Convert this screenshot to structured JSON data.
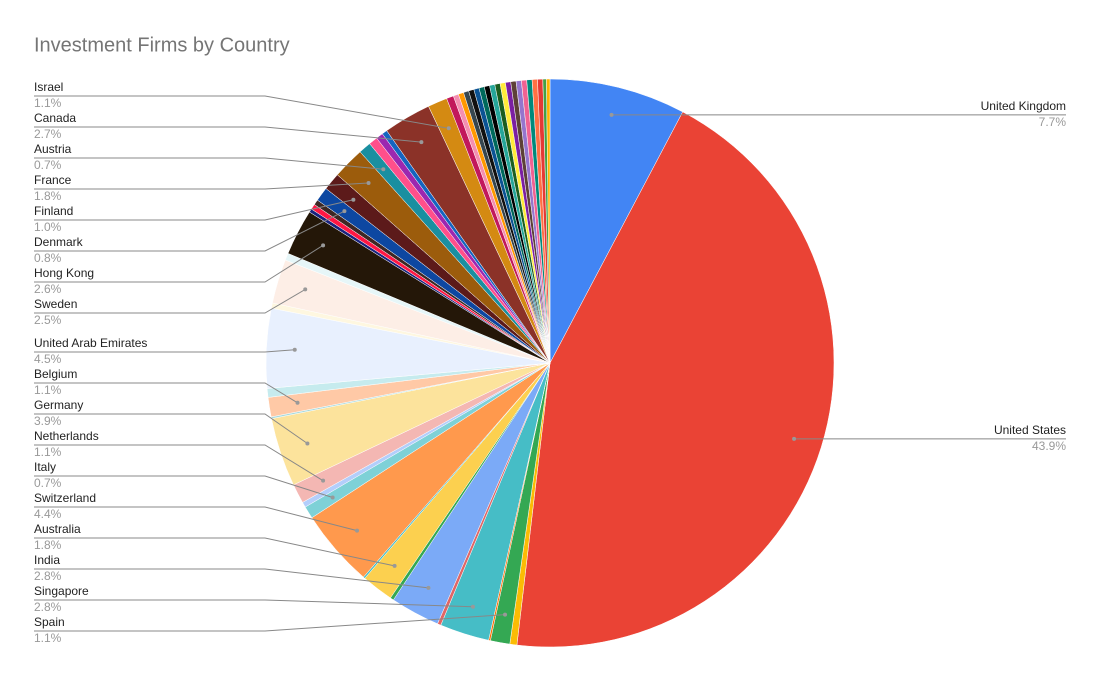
{
  "chart_data": {
    "type": "pie",
    "title": "Investment Firms by Country",
    "categories": [
      "United Kingdom",
      "United States",
      null,
      "Spain",
      null,
      "Singapore",
      null,
      "India",
      null,
      "Australia",
      null,
      "Switzerland",
      "Italy",
      null,
      "Netherlands",
      "Germany",
      null,
      "Belgium",
      null,
      "United Arab Emirates",
      null,
      "Sweden",
      null,
      "Hong Kong",
      null,
      null,
      null,
      "Denmark",
      "Finland",
      "France",
      "Austria",
      null,
      null,
      null,
      "Canada",
      "Israel",
      null,
      null,
      null,
      null,
      null,
      null,
      null,
      null,
      null,
      null,
      null,
      null,
      null,
      null,
      null,
      null,
      null,
      null,
      null,
      null
    ],
    "values": [
      7.7,
      43.9,
      0.4,
      1.1,
      0.1,
      2.8,
      0.2,
      2.8,
      0.2,
      1.8,
      0.1,
      4.4,
      0.7,
      0.3,
      1.1,
      3.9,
      0.1,
      1.1,
      0.5,
      4.5,
      0.3,
      2.5,
      0.4,
      2.6,
      0.2,
      0.3,
      0.3,
      0.8,
      1.0,
      1.8,
      0.7,
      0.5,
      0.4,
      0.3,
      2.7,
      1.1,
      0.4,
      0.3,
      0.3,
      0.3,
      0.3,
      0.3,
      0.3,
      0.3,
      0.3,
      0.3,
      0.3,
      0.3,
      0.3,
      0.3,
      0.3,
      0.3,
      0.3,
      0.3,
      0.2,
      0.2
    ],
    "value_labels": [
      "7.7%",
      "43.9%",
      null,
      "1.1%",
      null,
      "2.8%",
      null,
      "2.8%",
      null,
      "1.8%",
      null,
      "4.4%",
      "0.7%",
      null,
      "1.1%",
      "3.9%",
      null,
      "1.1%",
      null,
      "4.5%",
      null,
      "2.5%",
      null,
      "2.6%",
      null,
      null,
      null,
      "0.8%",
      "1.0%",
      "1.8%",
      "0.7%",
      null,
      null,
      null,
      "2.7%",
      "1.1%",
      null,
      null,
      null,
      null,
      null,
      null,
      null,
      null,
      null,
      null,
      null,
      null,
      null,
      null,
      null,
      null,
      null,
      null,
      null,
      null
    ],
    "colors": [
      "#4285f4",
      "#ea4335",
      "#fbbc04",
      "#34a853",
      "#ff6d01",
      "#46bdc6",
      "#e06666",
      "#7baaf7",
      "#34a853",
      "#fcd04f",
      "#46bdc6",
      "#ff994d",
      "#7ed1d7",
      "#b3cefb",
      "#f4b7b3",
      "#fce39c",
      "#a8dadc",
      "#ffc9a6",
      "#c6ebee",
      "#e8f0fe",
      "#fef7e0",
      "#fdeee6",
      "#e6f6f8",
      "#241708",
      "#1a237e",
      "#ff1744",
      "#3e2723",
      "#0d47a1",
      "#5c1a1a",
      "#9c5c0c",
      "#1a8fa0",
      "#ff4f8b",
      "#9c27b0",
      "#1565c0",
      "#8b3228",
      "#d48a12",
      "#c2185b",
      "#f48fb1",
      "#ff9800",
      "#37474f",
      "#111111",
      "#0b5394",
      "#00695c",
      "#000000",
      "#26a69a",
      "#1b5e20",
      "#ffeb3b",
      "#7b1fa2",
      "#5d4037",
      "#9575cd",
      "#f06292",
      "#00897b",
      "#ff7043",
      "#e53935",
      "#43a047",
      "#ffb300"
    ]
  }
}
